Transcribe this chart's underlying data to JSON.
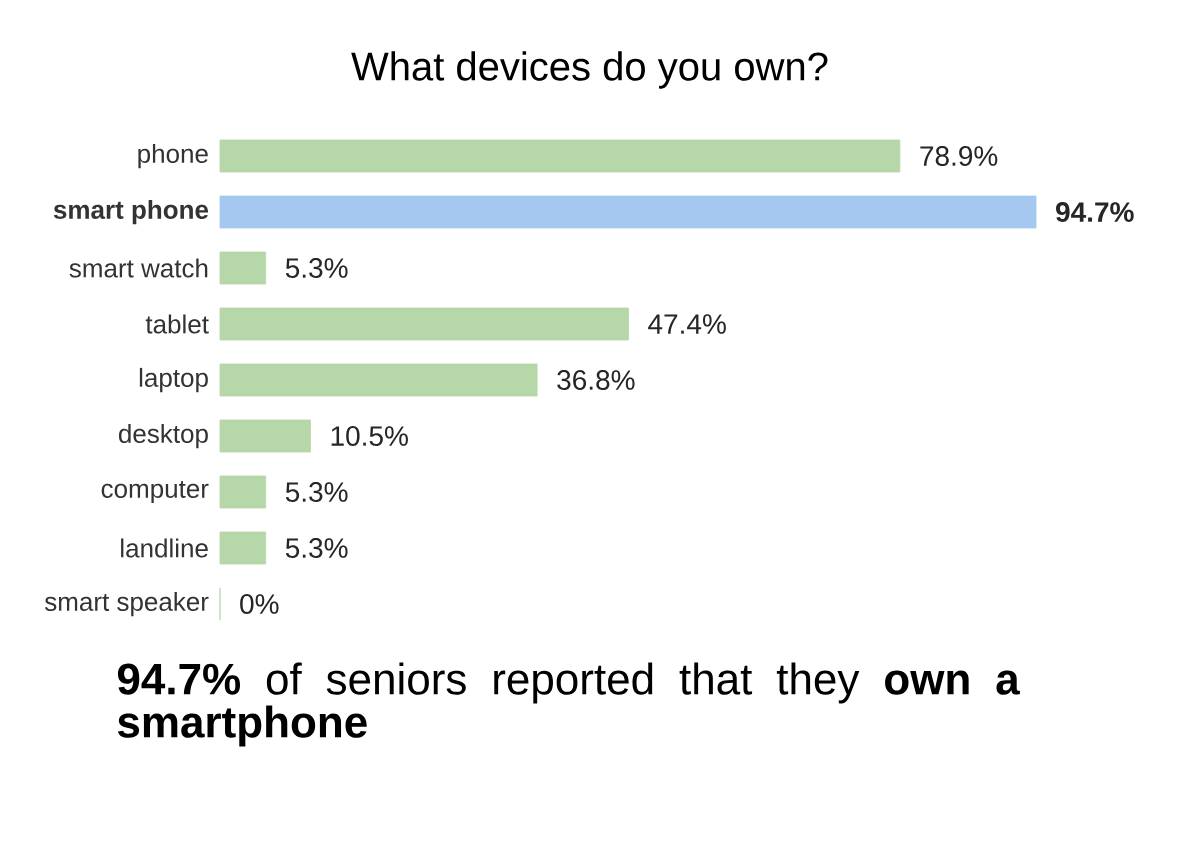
{
  "chart_data": {
    "type": "bar",
    "orientation": "horizontal",
    "title": "What devices do you own?",
    "categories": [
      "phone",
      "**smart phone**",
      "smart watch",
      "tablet",
      "laptop",
      "desktop",
      "computer",
      "landline",
      "smart speaker"
    ],
    "values": [
      78.9,
      94.7,
      5.3,
      47.4,
      36.8,
      10.5,
      5.3,
      5.3,
      0
    ],
    "value_labels": [
      "78.9%",
      "**94.7%**",
      "5.3%",
      "47.4%",
      "36.8%",
      "10.5%",
      "5.3%",
      "5.3%",
      "0%"
    ],
    "colors": [
      "#b6d7a8",
      "#a4c8f0",
      "#b6d7a8",
      "#b6d7a8",
      "#b6d7a8",
      "#b6d7a8",
      "#b6d7a8",
      "#b6d7a8",
      "#b6d7a8"
    ],
    "annotations": [
      "**94.7%** of seniors reported that they **own a smartphone**"
    ]
  }
}
